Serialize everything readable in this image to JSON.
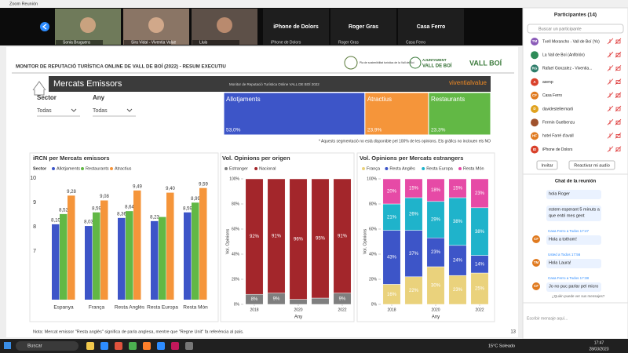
{
  "window": {
    "title": "Zoom Reunión"
  },
  "video_tiles": [
    "Sonia Bruguera",
    "Sira Vidal - Viventia Value",
    "Lluis"
  ],
  "audio_tiles": [
    "iPhone de Dolors",
    "Roger Gras",
    "Casa Ferro"
  ],
  "slide": {
    "header": "MONITOR DE REPUTACIÓ TURÍSTICA ONLINE DE VALL DE BOÍ (2022) - RESUM EXECUTIU",
    "logos": [
      "Pla de sostenibilitat turística de la Vall de Boí",
      "AJUNTAMENT",
      "VALL DE BOÍ",
      "VALL BOÍ"
    ],
    "section": "Mercats Emissors",
    "subtitle": "Monitor de Reputació Turística Online VALL DE BOÍ 2022",
    "brand": "viventialvalue",
    "filters": [
      {
        "label": "Sector",
        "value": "Todas"
      },
      {
        "label": "Any",
        "value": "Todas"
      }
    ],
    "note": "Nota: Mercat emissor \"Resta anglès\" significa de parla anglesa, mentre que \"Regne Unit\" fa referència al país.",
    "page": 13
  },
  "chart_data": [
    {
      "type": "treemap",
      "categories": [
        "Allotjaments",
        "Atractius",
        "Restaurants"
      ],
      "values": [
        53.0,
        23.9,
        23.3
      ],
      "value_labels": [
        "53,0%",
        "23,9%",
        "23,3%"
      ],
      "colors": [
        "#3d55c8",
        "#f5953a",
        "#62b845"
      ],
      "note": "* Aquests segmentació no està disponible pel 100% de les opinions. Els gràfics no inclouen els NO"
    },
    {
      "type": "bar",
      "title": "iRCN per Mercats emissors",
      "legend_title": "Sector",
      "categories": [
        "Espanya",
        "França",
        "Resta Anglès",
        "Resta Europa",
        "Resta Món"
      ],
      "series": [
        {
          "name": "Allotjaments",
          "color": "#3d55c8",
          "values": [
            8.1,
            8.03,
            8.36,
            8.23,
            8.59
          ],
          "value_labels": [
            "8,10",
            "8,03",
            "8,36",
            "8,23",
            "8,59"
          ]
        },
        {
          "name": "Restaurants",
          "color": "#62b845",
          "values": [
            8.52,
            8.59,
            8.64,
            8.4,
            8.99
          ],
          "value_labels": [
            "8,52",
            "8,59",
            "8,64",
            null,
            "8,99"
          ]
        },
        {
          "name": "Atractius",
          "color": "#f5953a",
          "values": [
            9.28,
            9.08,
            9.49,
            9.4,
            9.59
          ],
          "value_labels": [
            "9,28",
            "9,08",
            "9,49",
            "9,40",
            "9,59"
          ]
        }
      ],
      "ylim": [
        5,
        10
      ],
      "yticks": [
        7,
        8,
        9,
        10
      ],
      "grid": false
    },
    {
      "type": "stacked_bar",
      "title": "Vol. Opinions per origen",
      "legend_title": "Origen",
      "x": [
        2018,
        2019,
        2020,
        2021,
        2022
      ],
      "xlim": [
        2017.5,
        2022.5
      ],
      "xticks": [
        2018,
        2020,
        2022
      ],
      "x_label": "Any",
      "y_label": "Vol. Opinions",
      "series": [
        {
          "name": "Estranger",
          "color": "#7f7f7f",
          "values": [
            8,
            9,
            4,
            5,
            9
          ],
          "value_labels": [
            "8%",
            "9%",
            null,
            null,
            "9%"
          ]
        },
        {
          "name": "Nacional",
          "color": "#a3262b",
          "values": [
            92,
            91,
            96,
            95,
            91
          ],
          "value_labels": [
            "92%",
            "91%",
            "96%",
            "95%",
            "91%"
          ]
        }
      ],
      "ylim": [
        0,
        100
      ],
      "yticks": [
        {
          "value": 0,
          "label": "0%"
        },
        {
          "value": 20,
          "label": "20%"
        },
        {
          "value": 40,
          "label": "40%"
        },
        {
          "value": 60,
          "label": "60%"
        },
        {
          "value": 80,
          "label": "80%"
        },
        {
          "value": 100,
          "label": "100%"
        }
      ]
    },
    {
      "type": "stacked_bar",
      "title": "Vol. Opinions per Mercats estrangers",
      "legend_title": "Mercat",
      "x": [
        2018,
        2019,
        2020,
        2021,
        2022
      ],
      "xlim": [
        2017.5,
        2022.5
      ],
      "xticks": [
        2018,
        2020,
        2022
      ],
      "x_label": "Any",
      "y_label": "Vol. Opinions",
      "series": [
        {
          "name": "França",
          "color": "#ead27c",
          "values": [
            16,
            22,
            30,
            23,
            25
          ],
          "value_labels": [
            "16%",
            "22%",
            "30%",
            "23%",
            "25%"
          ]
        },
        {
          "name": "Resta Anglès",
          "color": "#3d55c8",
          "values": [
            43,
            37,
            23,
            24,
            14
          ],
          "value_labels": [
            "43%",
            "37%",
            "23%",
            "24%",
            "14%"
          ]
        },
        {
          "name": "Resta Europa",
          "color": "#1fb3cb",
          "values": [
            21,
            26,
            29,
            38,
            38
          ],
          "value_labels": [
            "21%",
            "26%",
            "29%",
            "38%",
            "38%"
          ]
        },
        {
          "name": "Resta Món",
          "color": "#e64aa6",
          "values": [
            20,
            15,
            18,
            15,
            23
          ],
          "value_labels": [
            "20%",
            "15%",
            "18%",
            "15%",
            "23%"
          ]
        }
      ],
      "ylim": [
        0,
        100
      ],
      "yticks": [
        {
          "value": 0,
          "label": "0%"
        },
        {
          "value": 20,
          "label": "20%"
        },
        {
          "value": 40,
          "label": "40%"
        },
        {
          "value": 60,
          "label": "60%"
        },
        {
          "value": 80,
          "label": "80%"
        },
        {
          "value": 100,
          "label": "100%"
        }
      ]
    }
  ],
  "participants": {
    "title": "Participantes (14)",
    "search": "Buscar un participante",
    "list": [
      {
        "name": "Txell Morancho - Vall de Boí (Yo)",
        "initials": "TM",
        "color": "#8a5ab8"
      },
      {
        "name": "La Vall de Boí (Anfitrión)",
        "color": "#2e8b57"
      },
      {
        "name": "Rafael Gonzalez - Viventia...",
        "initials": "RG",
        "color": "#2e7d6a"
      },
      {
        "name": "asenp",
        "initials": "A",
        "color": "#d9412b"
      },
      {
        "name": "Casa Ferro",
        "initials": "CF",
        "color": "#e07a1f"
      },
      {
        "name": "davidestellermarti",
        "initials": "D",
        "color": "#e0a21f"
      },
      {
        "name": "Fermin Guelbenzu",
        "color": "#a0522d"
      },
      {
        "name": "hotel Farré d'avall",
        "initials": "HF",
        "color": "#e07a1f"
      },
      {
        "name": "iPhone de Dolors",
        "initials": "ID",
        "color": "#d9412b"
      }
    ],
    "buttons": [
      "Invitar",
      "Reactivar mi audio"
    ]
  },
  "chat": {
    "title": "Chat de la reunión",
    "messages": [
      {
        "lines": [
          "hola Roger"
        ]
      },
      {
        "lines": [
          "estem esperant 5 minuts a",
          "que entri mes gent"
        ]
      },
      {
        "sender": "Casa Ferro a Todos 17:47",
        "initials": "CF",
        "color": "#e07a1f",
        "lines": [
          "Hola a tothom!"
        ]
      },
      {
        "sender": "Usted a Todos 17:56",
        "initials": "TM",
        "color": "#e07a1f",
        "lines": [
          "Hola Laura!"
        ]
      },
      {
        "sender": "Casa Ferro a Todos 17:38",
        "initials": "CF",
        "color": "#e07a1f",
        "lines": [
          "Jo no puc parlar pel micro"
        ]
      }
    ],
    "visibility": "¿Quién puede ver sus mensajes?",
    "input": "Escribir mensaje aquí..."
  },
  "taskbar": {
    "search": "Buscar",
    "weather": "15°C Soleado",
    "time": "17:47",
    "date": "28/03/2023"
  }
}
